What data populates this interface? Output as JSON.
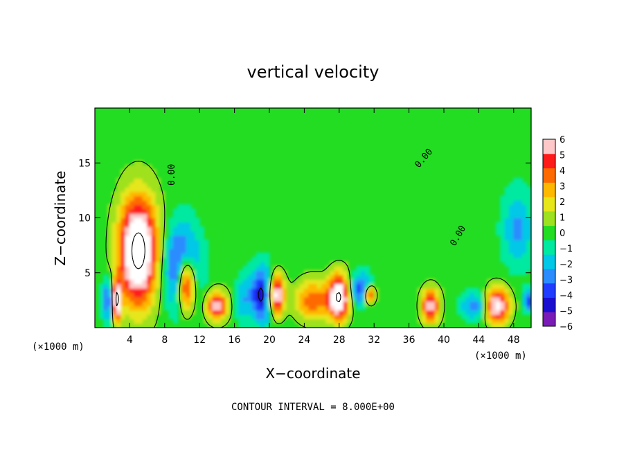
{
  "chart_data": {
    "type": "heatmap",
    "title": "vertical velocity",
    "xlabel": "X−coordinate",
    "ylabel": "Z−coordinate",
    "x_unit": "(×1000 m)",
    "y_unit": "(×1000 m)",
    "xlim": [
      0,
      50
    ],
    "ylim": [
      0,
      20
    ],
    "x_ticks": [
      4,
      8,
      12,
      16,
      20,
      24,
      28,
      32,
      36,
      40,
      44,
      48
    ],
    "y_ticks": [
      5,
      10,
      15
    ],
    "colorbar": {
      "min": -6,
      "max": 6,
      "tick_labels": [
        "6",
        "5",
        "4",
        "3",
        "2",
        "1",
        "0",
        "−1",
        "−2",
        "−3",
        "−4",
        "−5",
        "−6"
      ],
      "colors": [
        "#7a1bb8",
        "#1a0fd0",
        "#1f3cff",
        "#2a8cff",
        "#00c8e6",
        "#00e9a0",
        "#22dd22",
        "#9ee11e",
        "#e6e61a",
        "#ffb800",
        "#ff6a00",
        "#ff1a1a",
        "#ffc8c8"
      ]
    },
    "contour_label": "0.00",
    "contour_interval_note": "CONTOUR INTERVAL = 8.000E+00",
    "features": [
      {
        "kind": "updraft",
        "x": 5.0,
        "z": 7.0,
        "sx": 2.2,
        "sz": 4.8,
        "amp": 9
      },
      {
        "kind": "updraft",
        "x": 2.5,
        "z": 2.5,
        "sx": 0.5,
        "sz": 1.8,
        "amp": 9
      },
      {
        "kind": "downdraft",
        "x": 1.6,
        "z": 2.5,
        "sx": 0.8,
        "sz": 2.0,
        "amp": -4
      },
      {
        "kind": "downdraft",
        "x": 10.0,
        "z": 5.5,
        "sx": 2.0,
        "sz": 3.8,
        "amp": -5
      },
      {
        "kind": "updraft",
        "x": 10.5,
        "z": 4.0,
        "sx": 1.0,
        "sz": 2.5,
        "amp": 8
      },
      {
        "kind": "updraft",
        "x": 14.0,
        "z": 2.0,
        "sx": 1.2,
        "sz": 1.3,
        "amp": 6
      },
      {
        "kind": "downdraft",
        "x": 16.8,
        "z": 2.5,
        "sx": 0.8,
        "sz": 2.0,
        "amp": -2
      },
      {
        "kind": "downdraft",
        "x": 19.2,
        "z": 3.0,
        "sx": 1.5,
        "sz": 2.5,
        "amp": -5
      },
      {
        "kind": "updraft",
        "x": 20.8,
        "z": 3.0,
        "sx": 0.9,
        "sz": 1.8,
        "amp": 8
      },
      {
        "kind": "updraft",
        "x": 25.0,
        "z": 2.5,
        "sx": 2.0,
        "sz": 1.8,
        "amp": 4
      },
      {
        "kind": "updraft",
        "x": 28.0,
        "z": 2.8,
        "sx": 1.2,
        "sz": 2.0,
        "amp": 8
      },
      {
        "kind": "downdraft",
        "x": 30.5,
        "z": 3.5,
        "sx": 1.2,
        "sz": 1.5,
        "amp": -4
      },
      {
        "kind": "updraft",
        "x": 31.5,
        "z": 3.0,
        "sx": 0.6,
        "sz": 0.8,
        "amp": 6
      },
      {
        "kind": "updraft",
        "x": 38.5,
        "z": 2.0,
        "sx": 1.0,
        "sz": 1.5,
        "amp": 6
      },
      {
        "kind": "downdraft",
        "x": 43.5,
        "z": 2.0,
        "sx": 1.5,
        "sz": 1.2,
        "amp": -3
      },
      {
        "kind": "updraft",
        "x": 46.2,
        "z": 2.0,
        "sx": 1.3,
        "sz": 1.6,
        "amp": 7
      },
      {
        "kind": "downdraft",
        "x": 48.5,
        "z": 9.0,
        "sx": 1.8,
        "sz": 3.5,
        "amp": -2.5
      },
      {
        "kind": "downdraft",
        "x": 49.8,
        "z": 2.5,
        "sx": 0.6,
        "sz": 1.0,
        "amp": -4
      }
    ]
  }
}
